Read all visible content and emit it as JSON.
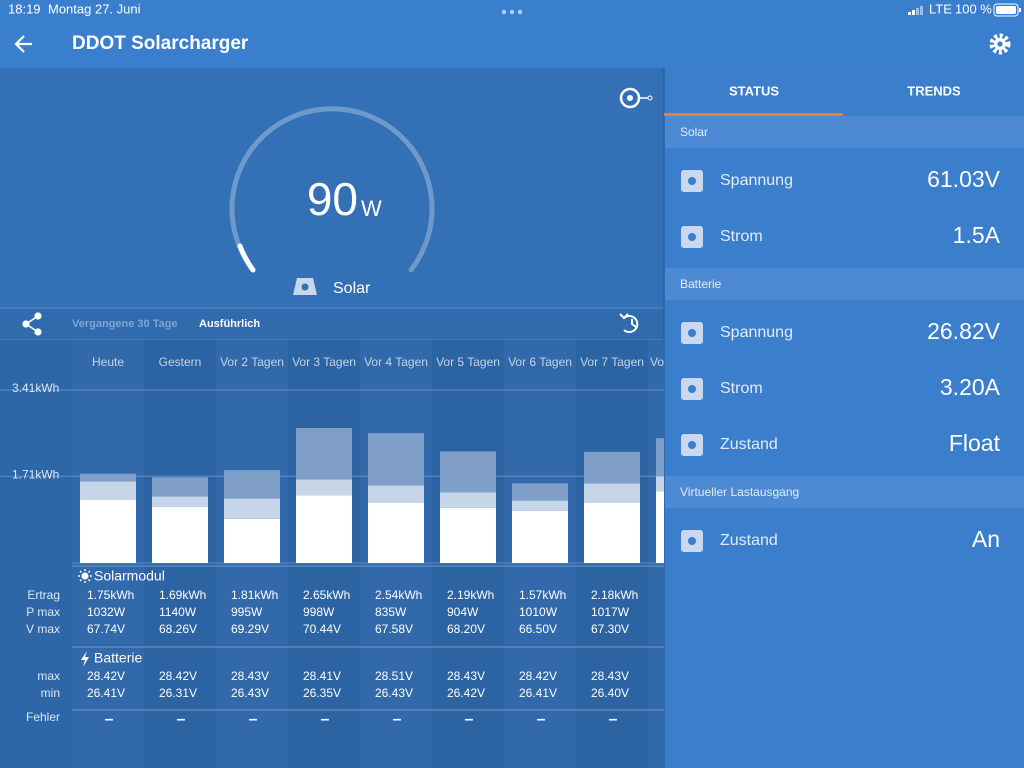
{
  "status_bar": {
    "time": "18:19",
    "date": "Montag 27. Juni",
    "network": "LTE",
    "battery": "100 %"
  },
  "header": {
    "title": "DDOT Solarcharger"
  },
  "gauge": {
    "value": "90",
    "unit": "W",
    "label": "Solar"
  },
  "history": {
    "tabs": [
      "Vergangene 30 Tage",
      "Ausführlich"
    ],
    "chart": {
      "type": "bar",
      "categories": [
        "Heute",
        "Gestern",
        "Vor 2 Tagen",
        "Vor 3 Tagen",
        "Vor 4 Tagen",
        "Vor 5 Tagen",
        "Vor 6 Tagen",
        "Vor 7 Tagen",
        "Vo"
      ],
      "series": [
        {
          "color": "#ffffff",
          "values": [
            1.25,
            1.11,
            0.87,
            1.33,
            1.19,
            1.09,
            1.03,
            1.19,
            1.41
          ]
        },
        {
          "color": "#c6d5e8",
          "values": [
            0.36,
            0.2,
            0.4,
            0.32,
            0.34,
            0.3,
            0.2,
            0.38,
            0.3
          ]
        },
        {
          "color": "#7f9fc9",
          "values": [
            0.15,
            0.38,
            0.56,
            1.01,
            1.03,
            0.81,
            0.34,
            0.62,
            0.75
          ]
        }
      ],
      "ylim": [
        0,
        3.41
      ],
      "yticks": [
        {
          "value": 1.71,
          "label": "1.71kWh"
        },
        {
          "value": 3.41,
          "label": "3.41kWh"
        }
      ],
      "grid": true
    },
    "solar_section": "Solarmodul",
    "battery_section": "Batterie",
    "row_labels": {
      "ertrag": "Ertrag",
      "pmax": "P max",
      "vmax": "V max",
      "max": "max",
      "min": "min",
      "fehler": "Fehler"
    },
    "rows": [
      {
        "ertrag": "1.75kWh",
        "pmax": "1032W",
        "vmax": "67.74V",
        "max": "28.42V",
        "min": "26.41V",
        "fehler": "–"
      },
      {
        "ertrag": "1.69kWh",
        "pmax": "1140W",
        "vmax": "68.26V",
        "max": "28.42V",
        "min": "26.31V",
        "fehler": "–"
      },
      {
        "ertrag": "1.81kWh",
        "pmax": "995W",
        "vmax": "69.29V",
        "max": "28.43V",
        "min": "26.43V",
        "fehler": "–"
      },
      {
        "ertrag": "2.65kWh",
        "pmax": "998W",
        "vmax": "70.44V",
        "max": "28.41V",
        "min": "26.35V",
        "fehler": "–"
      },
      {
        "ertrag": "2.54kWh",
        "pmax": "835W",
        "vmax": "67.58V",
        "max": "28.51V",
        "min": "26.43V",
        "fehler": "–"
      },
      {
        "ertrag": "2.19kWh",
        "pmax": "904W",
        "vmax": "68.20V",
        "max": "28.43V",
        "min": "26.42V",
        "fehler": "–"
      },
      {
        "ertrag": "1.57kWh",
        "pmax": "1010W",
        "vmax": "66.50V",
        "max": "28.42V",
        "min": "26.41V",
        "fehler": "–"
      },
      {
        "ertrag": "2.18kWh",
        "pmax": "1017W",
        "vmax": "67.30V",
        "max": "28.43V",
        "min": "26.40V",
        "fehler": "–"
      }
    ]
  },
  "status": {
    "tabs": [
      "STATUS",
      "TRENDS"
    ],
    "sections": [
      {
        "title": "Solar",
        "rows": [
          {
            "label": "Spannung",
            "value": "61.03V"
          },
          {
            "label": "Strom",
            "value": "1.5A"
          }
        ]
      },
      {
        "title": "Batterie",
        "rows": [
          {
            "label": "Spannung",
            "value": "26.82V"
          },
          {
            "label": "Strom",
            "value": "3.20A"
          },
          {
            "label": "Zustand",
            "value": "Float"
          }
        ]
      },
      {
        "title": "Virtueller Lastausgang",
        "rows": [
          {
            "label": "Zustand",
            "value": "An"
          }
        ]
      }
    ]
  }
}
